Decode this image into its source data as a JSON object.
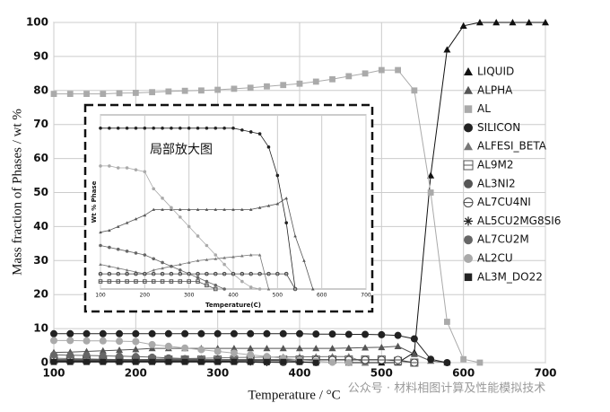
{
  "chart_data": [
    {
      "type": "scatter",
      "xlabel": "Temperature / °C",
      "ylabel": "Mass fraction of Phases / wt %",
      "xlim": [
        100,
        700
      ],
      "ylim": [
        0,
        100
      ],
      "xticks": [
        100,
        200,
        300,
        400,
        500,
        600,
        700
      ],
      "yticks": [
        0,
        10,
        20,
        30,
        40,
        50,
        60,
        70,
        80,
        90,
        100
      ],
      "grid": true,
      "legend": "right",
      "x": [
        100,
        120,
        140,
        160,
        180,
        200,
        220,
        240,
        260,
        280,
        300,
        320,
        340,
        360,
        380,
        400,
        420,
        440,
        460,
        480,
        500,
        520,
        540,
        560,
        580,
        600,
        620,
        640,
        660,
        680,
        700
      ],
      "series": [
        {
          "name": "LIQUID",
          "color": "#111111",
          "marker": "triangle",
          "values": [
            null,
            null,
            null,
            null,
            null,
            null,
            null,
            null,
            null,
            null,
            null,
            null,
            null,
            null,
            null,
            null,
            null,
            null,
            0,
            0,
            0,
            0,
            3,
            55,
            92,
            99,
            100,
            100,
            100,
            100,
            100
          ]
        },
        {
          "name": "ALPHA",
          "color": "#555555",
          "marker": "triangle",
          "values": [
            3,
            3.1,
            3.3,
            3.5,
            3.7,
            3.9,
            4.2,
            4.2,
            4.2,
            4.2,
            4.2,
            4.2,
            4.2,
            4.2,
            4.2,
            4.2,
            4.2,
            4.2,
            4.3,
            4.4,
            4.5,
            4.8,
            2.5,
            0.5,
            0,
            null,
            null,
            null,
            null,
            null,
            null
          ]
        },
        {
          "name": "AL",
          "color": "#aaaaaa",
          "marker": "square",
          "values": [
            79,
            79,
            79,
            79,
            79.2,
            79.3,
            79.5,
            79.7,
            79.9,
            80,
            80.2,
            80.5,
            80.8,
            81.2,
            81.6,
            82,
            82.6,
            83.3,
            84.2,
            85,
            86,
            86,
            80,
            50,
            12,
            1,
            0,
            null,
            null,
            null,
            null
          ]
        },
        {
          "name": "SILICON",
          "color": "#222222",
          "marker": "circle",
          "values": [
            8.5,
            8.5,
            8.5,
            8.5,
            8.5,
            8.5,
            8.5,
            8.5,
            8.5,
            8.5,
            8.5,
            8.5,
            8.5,
            8.5,
            8.5,
            8.5,
            8.4,
            8.4,
            8.3,
            8.3,
            8.2,
            8,
            7,
            1,
            0,
            null,
            null,
            null,
            null,
            null,
            null
          ]
        },
        {
          "name": "ALFESI_BETA",
          "color": "#777777",
          "marker": "triangle",
          "values": [
            1.3,
            1.2,
            1.1,
            1,
            0.9,
            0.8,
            1,
            1.1,
            1.2,
            1.3,
            1.4,
            1.5,
            1.55,
            1.6,
            1.65,
            1.7,
            1.75,
            1.8,
            1.8,
            0,
            null,
            null,
            null,
            null,
            null,
            null,
            null,
            null,
            null,
            null,
            null
          ]
        },
        {
          "name": "AL9M2",
          "color": "#555555",
          "marker": "open-square",
          "values": [
            0.9,
            0.9,
            0.9,
            0.9,
            0.9,
            0.9,
            0.9,
            0.9,
            0.9,
            0.9,
            0.9,
            0.9,
            0.9,
            0.9,
            0.9,
            0.9,
            0.9,
            0.9,
            0.9,
            0.9,
            0.9,
            0.5,
            0,
            null,
            null,
            null,
            null,
            null,
            null,
            null,
            null
          ]
        },
        {
          "name": "AL3NI2",
          "color": "#555555",
          "marker": "circle",
          "values": [
            0.6,
            0.6,
            0.6,
            0.6,
            0.6,
            0.6,
            0.6,
            0.6,
            0.6,
            0.6,
            0.6,
            0.6,
            0.6,
            0.6,
            0.6,
            0.3,
            0,
            null,
            null,
            null,
            null,
            null,
            null,
            null,
            null,
            null,
            null,
            null,
            null,
            null,
            null
          ]
        },
        {
          "name": "AL7CU4NI",
          "color": "#444444",
          "marker": "open-circle",
          "values": [
            0.8,
            0.8,
            0.8,
            0.8,
            0.8,
            0.8,
            0.8,
            0.8,
            0.8,
            0.8,
            0.8,
            0.8,
            0.8,
            0.8,
            0.8,
            0.8,
            0.8,
            0.8,
            0.8,
            0.8,
            0.8,
            0.8,
            0,
            null,
            null,
            null,
            null,
            null,
            null,
            null,
            null
          ]
        },
        {
          "name": "AL5CU2MG8SI6",
          "color": "#222222",
          "marker": "asterisk",
          "values": [
            0.4,
            0.4,
            0.4,
            0.4,
            0.4,
            0.4,
            0.4,
            0.4,
            0.4,
            0.4,
            0.4,
            0.4,
            0.2,
            0,
            null,
            null,
            null,
            null,
            null,
            null,
            null,
            null,
            null,
            null,
            null,
            null,
            null,
            null,
            null,
            null,
            null
          ]
        },
        {
          "name": "AL7CU2M",
          "color": "#666666",
          "marker": "circle",
          "values": [
            2.3,
            2.2,
            2.1,
            2,
            1.9,
            1.8,
            1.6,
            1.4,
            1.2,
            1,
            0.8,
            0.6,
            0.4,
            0.2,
            0,
            null,
            null,
            null,
            null,
            null,
            null,
            null,
            null,
            null,
            null,
            null,
            null,
            null,
            null,
            null,
            null
          ]
        },
        {
          "name": "AL2CU",
          "color": "#aaaaaa",
          "marker": "circle",
          "values": [
            6.5,
            6.5,
            6.4,
            6.4,
            6.3,
            6.2,
            5.3,
            4.8,
            4.3,
            3.8,
            3.3,
            2.8,
            2.3,
            1.8,
            1.3,
            0.8,
            0.4,
            0.1,
            0,
            null,
            null,
            null,
            null,
            null,
            null,
            null,
            null,
            null,
            null,
            null,
            null
          ]
        },
        {
          "name": "AL3M_DO22",
          "color": "#222222",
          "marker": "square",
          "values": [
            0.2,
            0.2,
            0.2,
            0.2,
            0.2,
            0.2,
            0.2,
            0.2,
            0.2,
            0.2,
            0.2,
            0.2,
            0.2,
            0.2,
            0.2,
            0.2,
            0,
            null,
            null,
            null,
            null,
            null,
            null,
            null,
            null,
            null,
            null,
            null,
            null,
            null,
            null
          ]
        }
      ],
      "watermark": "公众号 · 材料相图计算及性能模拟技术"
    },
    {
      "type": "scatter",
      "title": "局部放大图",
      "xlabel": "Temperature(C)",
      "ylabel": "Wt % Phase",
      "xlim": [
        100,
        700
      ],
      "ylim": [
        0,
        9.2
      ],
      "xticks": [
        100,
        200,
        300,
        400,
        500,
        600,
        700
      ],
      "grid": true,
      "x": [
        100,
        120,
        140,
        160,
        180,
        200,
        220,
        240,
        260,
        280,
        300,
        320,
        340,
        360,
        380,
        400,
        420,
        440,
        460,
        480,
        500,
        520,
        540,
        560,
        580,
        600,
        620,
        640,
        660,
        680,
        700
      ],
      "series": [
        {
          "color": "#222222",
          "marker": "circle",
          "values": [
            8.5,
            8.5,
            8.5,
            8.5,
            8.5,
            8.5,
            8.5,
            8.5,
            8.5,
            8.5,
            8.5,
            8.5,
            8.5,
            8.5,
            8.5,
            8.5,
            8.4,
            8.3,
            8.2,
            7.5,
            6,
            3.5,
            0,
            null,
            null,
            null,
            null,
            null,
            null,
            null,
            null
          ]
        },
        {
          "color": "#555555",
          "marker": "triangle",
          "values": [
            3,
            3.1,
            3.3,
            3.5,
            3.7,
            3.9,
            4.2,
            4.2,
            4.2,
            4.2,
            4.2,
            4.2,
            4.2,
            4.2,
            4.2,
            4.2,
            4.2,
            4.2,
            4.3,
            4.4,
            4.5,
            4.8,
            2.8,
            1.5,
            0,
            null,
            null,
            null,
            null,
            null,
            null
          ]
        },
        {
          "color": "#aaaaaa",
          "marker": "circle",
          "values": [
            6.5,
            6.5,
            6.4,
            6.4,
            6.3,
            6.2,
            5.3,
            4.8,
            4.3,
            3.8,
            3.3,
            2.8,
            2.3,
            1.8,
            1.3,
            0.8,
            0.4,
            0.1,
            0,
            null,
            null,
            null,
            null,
            null,
            null,
            null,
            null,
            null,
            null,
            null,
            null
          ]
        },
        {
          "color": "#777777",
          "marker": "triangle",
          "values": [
            1.3,
            1.2,
            1.1,
            1,
            0.9,
            0.8,
            1,
            1.1,
            1.2,
            1.3,
            1.4,
            1.5,
            1.55,
            1.6,
            1.65,
            1.7,
            1.75,
            1.8,
            1.8,
            0,
            null,
            null,
            null,
            null,
            null,
            null,
            null,
            null,
            null,
            null,
            null
          ]
        },
        {
          "color": "#666666",
          "marker": "circle",
          "values": [
            2.3,
            2.2,
            2.1,
            2,
            1.9,
            1.8,
            1.6,
            1.4,
            1.2,
            1,
            0.8,
            0.6,
            0.4,
            0.2,
            0,
            null,
            null,
            null,
            null,
            null,
            null,
            null,
            null,
            null,
            null,
            null,
            null,
            null,
            null,
            null,
            null
          ]
        },
        {
          "color": "#444444",
          "marker": "open-circle",
          "values": [
            0.8,
            0.8,
            0.8,
            0.8,
            0.8,
            0.8,
            0.8,
            0.8,
            0.8,
            0.8,
            0.8,
            0.8,
            0.8,
            0.8,
            0.8,
            0.8,
            0.8,
            0.8,
            0.8,
            0.8,
            0.8,
            0.8,
            0,
            null,
            null,
            null,
            null,
            null,
            null,
            null,
            null
          ]
        },
        {
          "color": "#555555",
          "marker": "open-square",
          "values": [
            0.4,
            0.4,
            0.4,
            0.4,
            0.4,
            0.4,
            0.4,
            0.4,
            0.4,
            0.4,
            0.4,
            0.4,
            0.2,
            0,
            null,
            null,
            null,
            null,
            null,
            null,
            null,
            null,
            null,
            null,
            null,
            null,
            null,
            null,
            null,
            null,
            null
          ]
        }
      ]
    }
  ]
}
